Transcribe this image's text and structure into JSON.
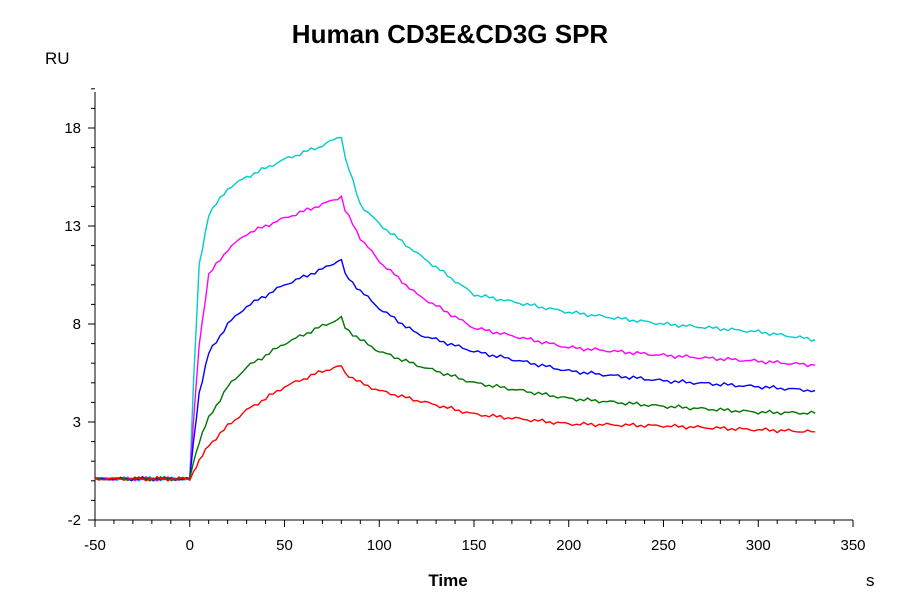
{
  "chart_data": {
    "type": "line",
    "title": "Human CD3E&CD3G SPR",
    "xlabel": "Time",
    "xunit": "s",
    "ylabel": "RU",
    "xlim": [
      -50,
      350
    ],
    "ylim": [
      -2,
      20
    ],
    "xticks": [
      -50,
      0,
      50,
      100,
      150,
      200,
      250,
      300,
      350
    ],
    "yticks": [
      -2,
      3,
      8,
      13,
      18
    ],
    "grid": false,
    "x": [
      -50,
      -25,
      0,
      2,
      5,
      10,
      20,
      30,
      50,
      70,
      80,
      82,
      90,
      100,
      120,
      150,
      200,
      250,
      300,
      330
    ],
    "series": [
      {
        "color": "#00cccc",
        "values": [
          0.1,
          0.1,
          0.1,
          5,
          11,
          13.6,
          14.9,
          15.5,
          16.4,
          17.1,
          17.6,
          16.5,
          14.1,
          13.1,
          11.6,
          9.5,
          8.6,
          8.0,
          7.6,
          7.2
        ]
      },
      {
        "color": "#ff00ff",
        "values": [
          0.1,
          0.1,
          0.1,
          3,
          7,
          10.5,
          11.8,
          12.6,
          13.4,
          14.1,
          14.5,
          13.8,
          12.4,
          11.2,
          9.5,
          7.8,
          6.8,
          6.4,
          6.1,
          5.9
        ]
      },
      {
        "color": "#0000ff",
        "values": [
          0.1,
          0.1,
          0.1,
          2,
          4.5,
          6.5,
          8.0,
          8.9,
          10.0,
          10.8,
          11.3,
          10.5,
          9.7,
          8.8,
          7.5,
          6.6,
          5.6,
          5.1,
          4.8,
          4.6
        ]
      },
      {
        "color": "#007700",
        "values": [
          0.1,
          0.1,
          0.1,
          1,
          2,
          3.2,
          4.8,
          5.8,
          7.0,
          7.9,
          8.3,
          7.8,
          7.2,
          6.6,
          5.9,
          5.0,
          4.2,
          3.8,
          3.5,
          3.45
        ]
      },
      {
        "color": "#ff0000",
        "values": [
          0.1,
          0.1,
          0.1,
          0.5,
          1,
          1.8,
          2.8,
          3.6,
          4.8,
          5.6,
          5.85,
          5.5,
          5.0,
          4.6,
          4.1,
          3.4,
          2.9,
          2.8,
          2.6,
          2.5
        ]
      }
    ]
  }
}
